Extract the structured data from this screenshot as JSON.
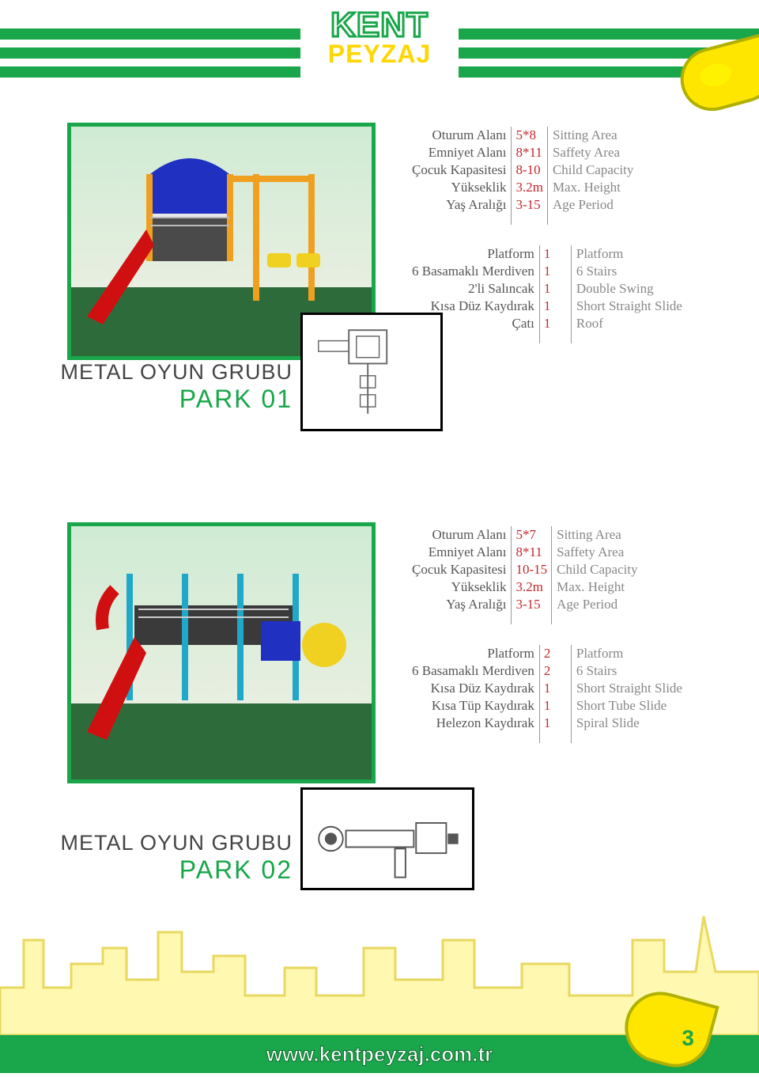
{
  "brand": {
    "line1": "KENT",
    "line2": "PEYZAJ"
  },
  "footer": {
    "url": "www.kentpeyzaj.com.tr",
    "page_number": "3"
  },
  "products": [
    {
      "title_line1": "METAL OYUN GRUBU",
      "title_line2": "PARK 01",
      "specs": [
        {
          "tr": "Oturum Alanı",
          "val": "5*8",
          "en": "Sitting Area"
        },
        {
          "tr": "Emniyet Alanı",
          "val": "8*11",
          "en": "Saffety Area"
        },
        {
          "tr": "Çocuk Kapasitesi",
          "val": "8-10",
          "en": "Child Capacity"
        },
        {
          "tr": "Yükseklik",
          "val": "3.2m",
          "en": "Max. Height"
        },
        {
          "tr": "Yaş Aralığı",
          "val": "3-15",
          "en": "Age Period"
        }
      ],
      "components": [
        {
          "tr": "Platform",
          "val": "1",
          "en": "Platform"
        },
        {
          "tr": "6 Basamaklı Merdiven",
          "val": "1",
          "en": "6 Stairs"
        },
        {
          "tr": "2'li Salıncak",
          "val": "1",
          "en": "Double Swing"
        },
        {
          "tr": "Kısa Düz Kaydırak",
          "val": "1",
          "en": "Short Straight Slide"
        },
        {
          "tr": "Çatı",
          "val": "1",
          "en": "Roof"
        }
      ]
    },
    {
      "title_line1": "METAL OYUN GRUBU",
      "title_line2": "PARK 02",
      "specs": [
        {
          "tr": "Oturum Alanı",
          "val": "5*7",
          "en": "Sitting Area"
        },
        {
          "tr": "Emniyet Alanı",
          "val": "8*11",
          "en": "Saffety Area"
        },
        {
          "tr": "Çocuk Kapasitesi",
          "val": "10-15",
          "en": "Child Capacity"
        },
        {
          "tr": "Yükseklik",
          "val": "3.2m",
          "en": "Max. Height"
        },
        {
          "tr": "Yaş Aralığı",
          "val": "3-15",
          "en": "Age Period"
        }
      ],
      "components": [
        {
          "tr": "Platform",
          "val": "2",
          "en": "Platform"
        },
        {
          "tr": "6 Basamaklı Merdiven",
          "val": "2",
          "en": "6 Stairs"
        },
        {
          "tr": "Kısa Düz Kaydırak",
          "val": "1",
          "en": "Short Straight Slide"
        },
        {
          "tr": "Kısa Tüp Kaydırak",
          "val": "1",
          "en": "Short Tube Slide"
        },
        {
          "tr": "Helezon Kaydırak",
          "val": "1",
          "en": "Spiral Slide"
        }
      ]
    }
  ]
}
